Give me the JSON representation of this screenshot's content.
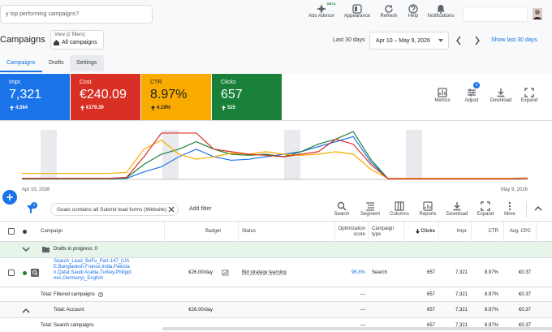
{
  "search": {
    "placeholder": "y top performing campaigns?"
  },
  "toolbar": [
    {
      "label": "Ads Advisor",
      "badge": "BETA"
    },
    {
      "label": "Appearance"
    },
    {
      "label": "Refresh"
    },
    {
      "label": "Help"
    },
    {
      "label": "Notifications"
    }
  ],
  "page": {
    "title": "Campaigns",
    "view_filters": "View (2 filters)",
    "view": "All campaigns",
    "date_preset": "Last 30 days",
    "date_range": "Apr 10 – May 9, 2026",
    "show_last": "Show last 30 days"
  },
  "tabs": [
    "Campaigns",
    "Drafts",
    "Settings"
  ],
  "metrics": [
    {
      "label": "Impr.",
      "value": "7,321",
      "change": "4,564",
      "color": "#1a73e8",
      "text": "#ffffff"
    },
    {
      "label": "Cost",
      "value": "€240.09",
      "change": "€179.39",
      "color": "#d93025",
      "text": "#ffffff"
    },
    {
      "label": "CTR",
      "value": "8.97%",
      "change": "4.19%",
      "color": "#f9ab00",
      "text": "#202124"
    },
    {
      "label": "Clicks",
      "value": "657",
      "change": "525",
      "color": "#188038",
      "text": "#ffffff"
    }
  ],
  "chart_tools": [
    {
      "label": "Metrics"
    },
    {
      "label": "Adjust",
      "badge": "3"
    },
    {
      "label": "Download"
    },
    {
      "label": "Expand"
    }
  ],
  "chart": {
    "start": "Apr 10, 2026",
    "end": "May 9, 2026",
    "ylim": [
      0,
      100
    ],
    "lines": [
      {
        "color": "#1a73e8",
        "values": [
          1,
          1,
          1,
          1,
          1,
          1,
          2,
          15,
          25,
          45,
          60,
          45,
          38,
          40,
          45,
          50,
          55,
          65,
          75,
          85,
          35,
          1,
          1,
          1,
          1,
          1,
          1,
          1,
          1,
          2
        ]
      },
      {
        "color": "#188038",
        "values": [
          1,
          1,
          1,
          1,
          1,
          1,
          3,
          30,
          50,
          60,
          75,
          60,
          50,
          48,
          50,
          45,
          55,
          70,
          80,
          95,
          40,
          1,
          1,
          1,
          1,
          1,
          1,
          1,
          1,
          2
        ]
      },
      {
        "color": "#f9ab00",
        "values": [
          12,
          12,
          12,
          12,
          12,
          12,
          14,
          60,
          78,
          50,
          40,
          45,
          52,
          50,
          55,
          50,
          48,
          50,
          55,
          50,
          20,
          2,
          2,
          2,
          2,
          2,
          2,
          2,
          2,
          3
        ]
      },
      {
        "color": "#d93025",
        "values": [
          2,
          2,
          2,
          2,
          2,
          2,
          4,
          45,
          92,
          92,
          92,
          60,
          55,
          50,
          48,
          45,
          50,
          55,
          80,
          70,
          30,
          1,
          1,
          1,
          1,
          1,
          1,
          1,
          1,
          2
        ]
      }
    ]
  },
  "filters": {
    "count": "1",
    "chip": "Goals contains all Submit lead forms (Website)",
    "add": "Add filter"
  },
  "table_tools": [
    "Search",
    "Segment",
    "Columns",
    "Reports",
    "Download",
    "Expand",
    "More"
  ],
  "table": {
    "headers": {
      "name": "Campaign",
      "budget": "Budget",
      "status": "Status",
      "opt": "Optimization score",
      "type": "Campaign type",
      "clicks": "Clicks",
      "impr": "Impr.",
      "ctr": "CTR",
      "cpc": "Avg. CPC"
    },
    "drafts": "Drafts in progress: 0",
    "rows": [
      {
        "name": "Search_Lead_BoFu_Part-147_(UAE,Bangladesh,France,India,Pakistan,Qatar,Saudi Arabia,Turkey,Philippines,Germany)_English",
        "budget": "€26.00/day",
        "status": "Bid strategy learning",
        "opt": "96.8%",
        "type": "Search",
        "clicks": "657",
        "impr": "7,321",
        "ctr": "8.97%",
        "cpc": "€0.37"
      }
    ],
    "totals": [
      {
        "name": "Total: Filtered campaigns",
        "opt": "—",
        "clicks": "657",
        "impr": "7,321",
        "ctr": "8.97%",
        "cpc": "€0.37"
      },
      {
        "name": "Total: Account",
        "budget": "€26.00/day",
        "opt": "—",
        "clicks": "657",
        "impr": "7,321",
        "ctr": "8.97%",
        "cpc": "€0.37"
      },
      {
        "name": "Total: Search campaigns",
        "opt": "—",
        "clicks": "657",
        "impr": "7,321",
        "ctr": "8.97%",
        "cpc": "€0.37"
      }
    ]
  }
}
